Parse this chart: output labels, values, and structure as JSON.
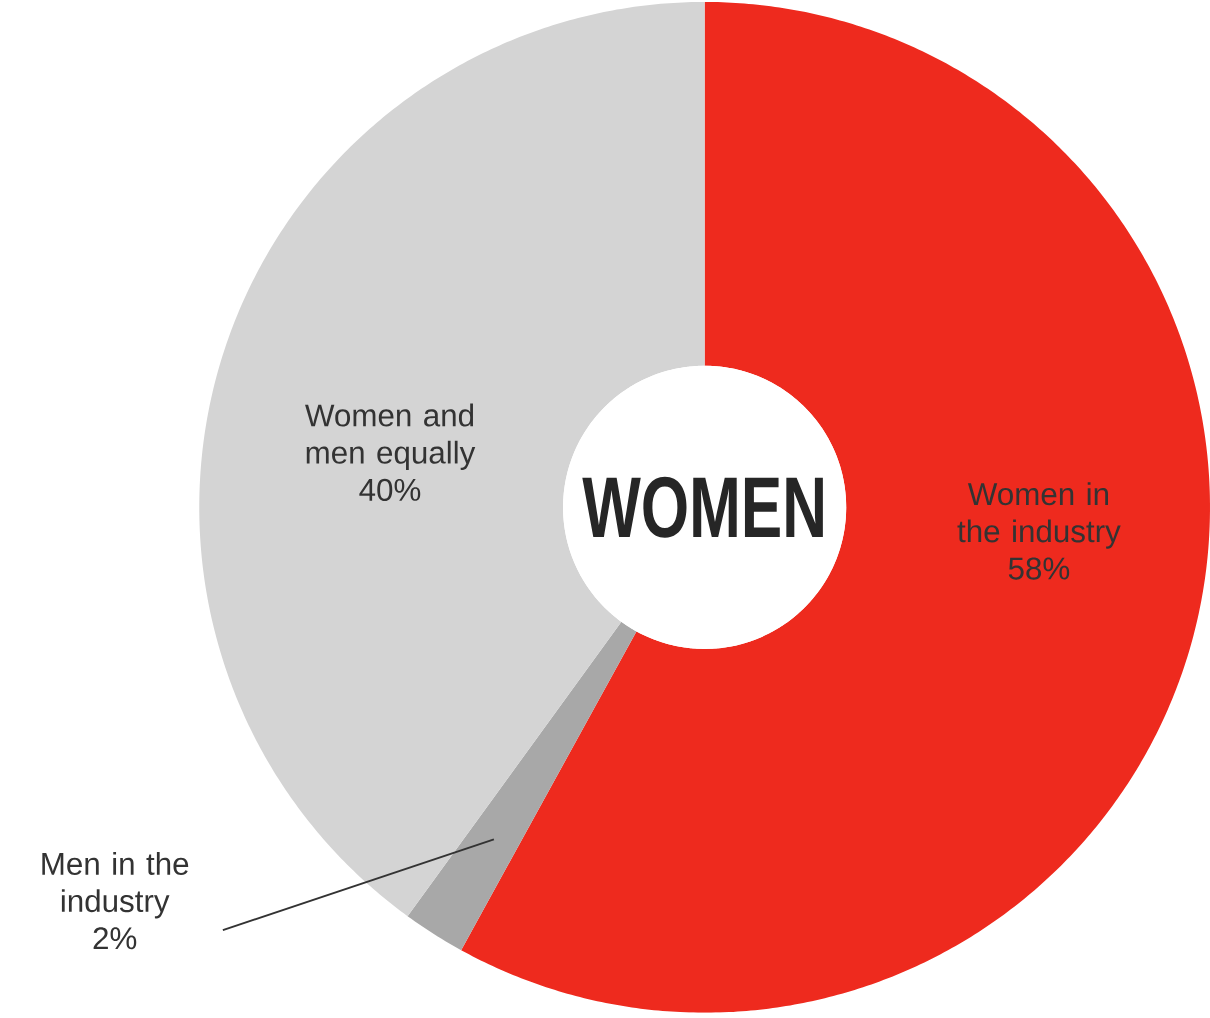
{
  "chart_data": {
    "type": "donut",
    "title": "WOMEN",
    "categories": [
      "Women in the industry",
      "Men in the industry",
      "Women and men equally"
    ],
    "values": [
      58,
      2,
      40
    ],
    "colors": [
      "#ee2a1e",
      "#a8a8a8",
      "#d4d4d4"
    ],
    "value_labels": [
      "58%",
      "2%",
      "40%"
    ]
  }
}
